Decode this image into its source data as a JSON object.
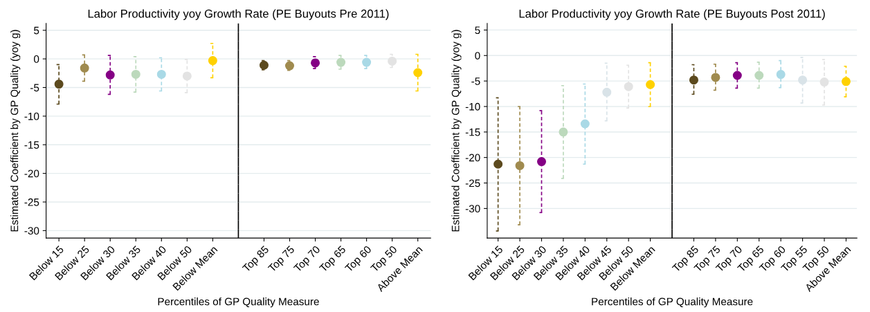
{
  "chart_data": [
    {
      "type": "scatter",
      "title": "Labor Productivity yoy Growth Rate (PE Buyouts Pre 2011)",
      "xlabel": "Percentiles of GP Quality Measure",
      "ylabel": "Estimated Coefficient by GP Quality (yoy g)",
      "categories": [
        "Below 15",
        "Below 25",
        "Below 30",
        "Below 35",
        "Below 40",
        "Below 50",
        "Below Mean",
        null,
        "Top 85",
        "Top 75",
        "Top 70",
        "Top 65",
        "Top 60",
        "Top 50",
        "Above Mean"
      ],
      "series": [
        {
          "values": [
            -4.4,
            -1.6,
            -2.8,
            -2.7,
            -2.7,
            -3.0,
            -0.3,
            null,
            -1.1,
            -1.2,
            -0.7,
            -0.6,
            -0.6,
            -0.4,
            -2.4
          ],
          "colors": [
            "#5c4a1e",
            "#a08b4f",
            "#850085",
            "#bcd9bc",
            "#a9d9e6",
            "#e3e3e3",
            "#ffd100",
            null,
            "#5c4a1e",
            "#a08b4f",
            "#850085",
            "#bcd9bc",
            "#a9d9e6",
            "#e3e3e3",
            "#ffd100"
          ],
          "errors": [
            [
              -7.9,
              -1.0
            ],
            [
              -3.9,
              0.7
            ],
            [
              -6.2,
              0.6
            ],
            [
              -5.8,
              0.4
            ],
            [
              -5.6,
              0.2
            ],
            [
              -5.9,
              -0.1
            ],
            [
              -3.3,
              2.7
            ],
            null,
            [
              -1.9,
              -0.3
            ],
            [
              -2.0,
              -0.3
            ],
            [
              -1.7,
              0.4
            ],
            [
              -1.8,
              0.6
            ],
            [
              -1.7,
              0.6
            ],
            [
              -1.5,
              0.8
            ],
            [
              -5.6,
              0.8
            ]
          ]
        }
      ],
      "ylim": [
        -31.3,
        6.2
      ],
      "yticks": [
        5,
        0,
        -5,
        -10,
        -15,
        -20,
        -25,
        -30
      ],
      "grid": "y",
      "marker": "circle",
      "line_style": "dashed",
      "legend": false
    },
    {
      "type": "scatter",
      "title": "Labor Productivity yoy Growth Rate (PE Buyouts Post 2011)",
      "xlabel": "Percentiles of GP Quality Measure",
      "ylabel": "Estimated Coefficient by GP Quality (yoy g)",
      "categories": [
        "Below 15",
        "Below 25",
        "Below 30",
        "Below 35",
        "Below 40",
        "Below 45",
        "Below 50",
        "Below Mean",
        null,
        "Top 85",
        "Top 75",
        "Top 70",
        "Top 65",
        "Top 60",
        "Top 55",
        "Top 50",
        "Above Mean"
      ],
      "series": [
        {
          "values": [
            -21.3,
            -21.6,
            -20.8,
            -15.0,
            -13.4,
            -7.2,
            -6.1,
            -5.7,
            null,
            -4.8,
            -4.3,
            -3.9,
            -3.9,
            -3.7,
            -4.8,
            -5.2,
            -5.1
          ],
          "colors": [
            "#5c4a1e",
            "#a08b4f",
            "#850085",
            "#bcd9bc",
            "#a9d9e6",
            "#d9e3e8",
            "#e3e3e3",
            "#ffd100",
            null,
            "#5c4a1e",
            "#a08b4f",
            "#850085",
            "#bcd9bc",
            "#a9d9e6",
            "#d9e3e8",
            "#e3e3e3",
            "#ffd100"
          ],
          "errors": [
            [
              -34.4,
              -8.3
            ],
            [
              -33.2,
              -10.0
            ],
            [
              -30.8,
              -10.8
            ],
            [
              -24.1,
              -5.9
            ],
            [
              -21.3,
              -5.6
            ],
            [
              -12.8,
              -1.5
            ],
            [
              -10.3,
              -1.9
            ],
            [
              -10.0,
              -1.4
            ],
            null,
            [
              -7.6,
              -1.8
            ],
            [
              -6.8,
              -1.7
            ],
            [
              -6.4,
              -1.4
            ],
            [
              -6.4,
              -1.3
            ],
            [
              -6.3,
              -1.0
            ],
            [
              -9.3,
              -0.4
            ],
            [
              -9.7,
              -0.8
            ],
            [
              -8.1,
              -2.1
            ]
          ]
        }
      ],
      "ylim": [
        -35.8,
        6.3
      ],
      "yticks": [
        5,
        0,
        -5,
        -10,
        -15,
        -20,
        -25,
        -30
      ],
      "grid": "y",
      "marker": "circle",
      "line_style": "dashed",
      "legend": false
    }
  ]
}
